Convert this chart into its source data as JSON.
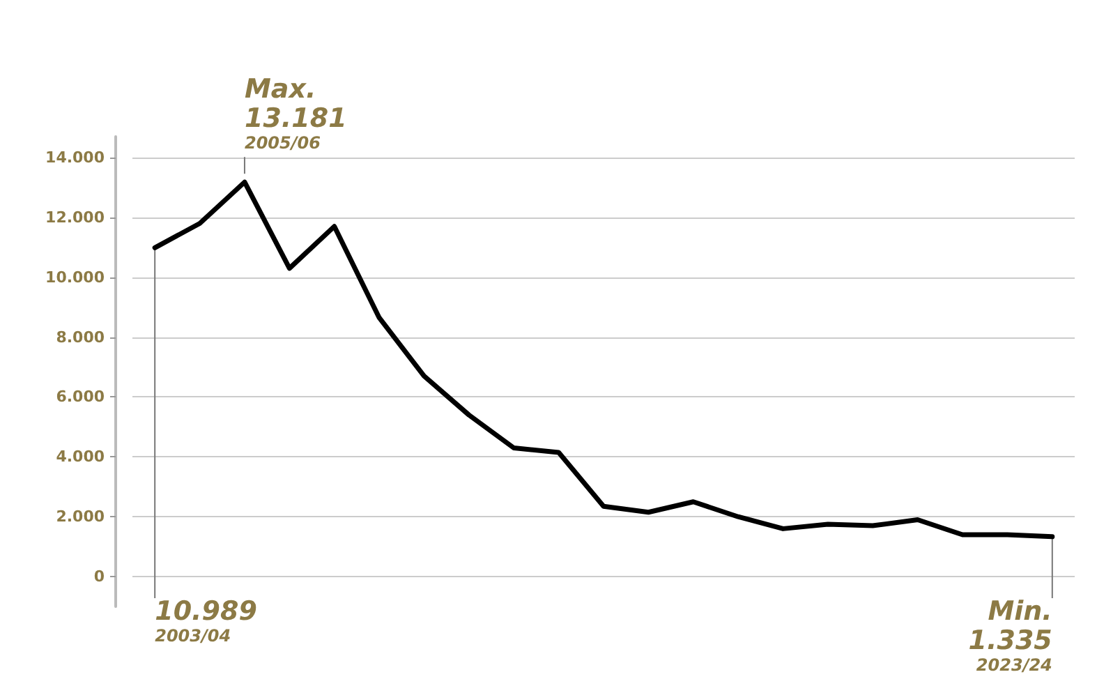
{
  "chart_data": {
    "type": "line",
    "categories": [
      null,
      null,
      null,
      null,
      null,
      null,
      null,
      null,
      null,
      null,
      null,
      null,
      null,
      null,
      null,
      null,
      null,
      null,
      null,
      null,
      null
    ],
    "series": [
      {
        "color": "#000000",
        "values": [
          10989,
          11800,
          13181,
          10300,
          11700,
          8650,
          6700,
          5400,
          4300,
          4150,
          2350,
          2150,
          2500,
          2000,
          1600,
          1750,
          1700,
          1900,
          1400,
          1400,
          1335
        ]
      }
    ],
    "ylim": [
      -1000,
      14700
    ],
    "yticks": [
      {
        "value": 0,
        "label": "0"
      },
      {
        "value": 2000,
        "label": "2.000"
      },
      {
        "value": 4000,
        "label": "4.000"
      },
      {
        "value": 6000,
        "label": "6.000"
      },
      {
        "value": 8000,
        "label": "8.000"
      },
      {
        "value": 10000,
        "label": "10.000"
      },
      {
        "value": 12000,
        "label": "12.000"
      },
      {
        "value": 14000,
        "label": "14.000"
      }
    ],
    "grid": "y",
    "marker": "none",
    "line_style": "solid",
    "tick_labels": "y",
    "annotations": [
      "Max.\n13.181\n2005/06",
      "10.989\n2003/04",
      "Min.\n1.335\n2023/24"
    ]
  }
}
